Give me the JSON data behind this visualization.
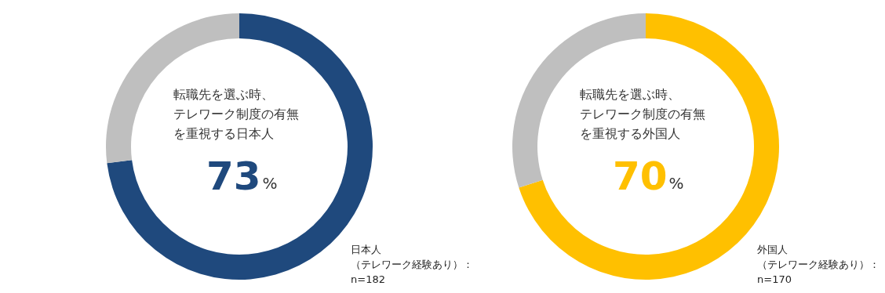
{
  "chart_data": [
    {
      "type": "donut",
      "title": "転職先を選ぶ時、テレワーク制度の有無を重視する日本人",
      "categories": [
        null,
        null
      ],
      "values": [
        73,
        27
      ],
      "colors": [
        "#1f497d",
        "#bfbfbf"
      ],
      "value_labels": [
        "73%",
        null
      ],
      "annotations": [
        "日本人（テレワーク経験あり）：n=182"
      ]
    },
    {
      "type": "donut",
      "title": "転職先を選ぶ時、テレワーク制度の有無を重視する外国人",
      "categories": [
        null,
        null
      ],
      "values": [
        70,
        30
      ],
      "colors": [
        "#ffc000",
        "#bfbfbf"
      ],
      "value_labels": [
        "70%",
        null
      ],
      "annotations": [
        "外国人（テレワーク経験あり）：n=170"
      ]
    }
  ]
}
